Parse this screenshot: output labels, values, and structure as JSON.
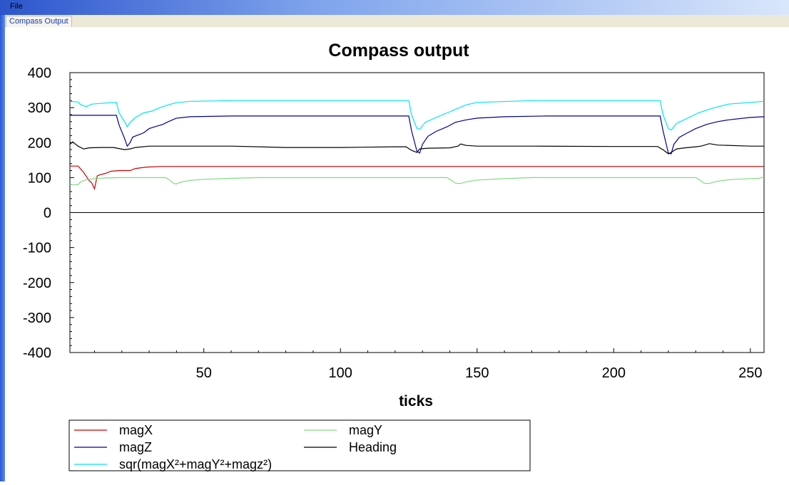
{
  "menubar": {
    "file_label": "File"
  },
  "tab": {
    "label": "Compass Output"
  },
  "chart_data": {
    "type": "line",
    "title": "Compass output",
    "xlabel": "ticks",
    "ylabel": "",
    "xlim": [
      1,
      255
    ],
    "ylim": [
      -400,
      400
    ],
    "xticks": [
      50,
      100,
      150,
      200,
      250
    ],
    "yticks": [
      -400,
      -300,
      -200,
      -100,
      0,
      100,
      200,
      300,
      400
    ],
    "grid": false,
    "legend_position": "bottom-left",
    "series": [
      {
        "name": "magX",
        "color": "#cc0000",
        "points": [
          [
            1,
            133
          ],
          [
            4,
            133
          ],
          [
            6,
            115
          ],
          [
            8,
            92
          ],
          [
            9,
            85
          ],
          [
            10,
            68
          ],
          [
            11,
            105
          ],
          [
            12,
            108
          ],
          [
            14,
            112
          ],
          [
            16,
            118
          ],
          [
            19,
            120
          ],
          [
            23,
            120
          ],
          [
            25,
            126
          ],
          [
            29,
            130
          ],
          [
            35,
            132
          ],
          [
            70,
            132
          ],
          [
            150,
            132
          ],
          [
            200,
            132
          ],
          [
            255,
            132
          ]
        ]
      },
      {
        "name": "magY",
        "color": "#7fd97f",
        "points": [
          [
            1,
            80
          ],
          [
            4,
            80
          ],
          [
            5,
            88
          ],
          [
            7,
            94
          ],
          [
            10,
            97
          ],
          [
            14,
            99
          ],
          [
            20,
            100
          ],
          [
            36,
            100
          ],
          [
            38,
            90
          ],
          [
            39,
            83
          ],
          [
            40,
            82
          ],
          [
            42,
            88
          ],
          [
            45,
            92
          ],
          [
            50,
            95
          ],
          [
            60,
            98
          ],
          [
            70,
            100
          ],
          [
            139,
            100
          ],
          [
            141,
            90
          ],
          [
            142,
            84
          ],
          [
            144,
            83
          ],
          [
            146,
            88
          ],
          [
            150,
            93
          ],
          [
            160,
            97
          ],
          [
            170,
            100
          ],
          [
            230,
            100
          ],
          [
            232,
            90
          ],
          [
            233,
            84
          ],
          [
            235,
            83
          ],
          [
            237,
            88
          ],
          [
            242,
            94
          ],
          [
            250,
            97
          ],
          [
            253,
            98
          ],
          [
            255,
            102
          ]
        ]
      },
      {
        "name": "magZ",
        "color": "#000099",
        "points": [
          [
            1,
            278
          ],
          [
            18,
            278
          ],
          [
            19,
            250
          ],
          [
            21,
            212
          ],
          [
            22,
            190
          ],
          [
            23,
            200
          ],
          [
            24,
            216
          ],
          [
            26,
            222
          ],
          [
            28,
            228
          ],
          [
            30,
            240
          ],
          [
            32,
            245
          ],
          [
            35,
            252
          ],
          [
            37,
            260
          ],
          [
            40,
            270
          ],
          [
            45,
            274
          ],
          [
            60,
            276
          ],
          [
            125,
            276
          ],
          [
            126,
            235
          ],
          [
            128,
            175
          ],
          [
            129,
            170
          ],
          [
            130,
            195
          ],
          [
            132,
            218
          ],
          [
            135,
            232
          ],
          [
            139,
            245
          ],
          [
            142,
            258
          ],
          [
            146,
            265
          ],
          [
            150,
            270
          ],
          [
            160,
            274
          ],
          [
            175,
            276
          ],
          [
            217,
            276
          ],
          [
            218,
            235
          ],
          [
            220,
            170
          ],
          [
            221,
            168
          ],
          [
            222,
            195
          ],
          [
            224,
            215
          ],
          [
            227,
            228
          ],
          [
            230,
            240
          ],
          [
            234,
            252
          ],
          [
            238,
            260
          ],
          [
            242,
            265
          ],
          [
            250,
            272
          ],
          [
            255,
            274
          ]
        ]
      },
      {
        "name": "Heading",
        "color": "#000000",
        "points": [
          [
            1,
            195
          ],
          [
            2,
            202
          ],
          [
            4,
            190
          ],
          [
            6,
            182
          ],
          [
            8,
            185
          ],
          [
            12,
            186
          ],
          [
            17,
            186
          ],
          [
            19,
            183
          ],
          [
            21,
            180
          ],
          [
            23,
            182
          ],
          [
            25,
            186
          ],
          [
            30,
            190
          ],
          [
            40,
            190
          ],
          [
            60,
            190
          ],
          [
            80,
            186
          ],
          [
            100,
            186
          ],
          [
            120,
            188
          ],
          [
            124,
            188
          ],
          [
            126,
            178
          ],
          [
            128,
            172
          ],
          [
            129,
            182
          ],
          [
            132,
            184
          ],
          [
            140,
            185
          ],
          [
            143,
            190
          ],
          [
            144,
            196
          ],
          [
            146,
            192
          ],
          [
            150,
            190
          ],
          [
            170,
            190
          ],
          [
            200,
            189
          ],
          [
            216,
            189
          ],
          [
            218,
            180
          ],
          [
            220,
            168
          ],
          [
            221,
            172
          ],
          [
            223,
            182
          ],
          [
            226,
            185
          ],
          [
            230,
            188
          ],
          [
            232,
            190
          ],
          [
            235,
            197
          ],
          [
            238,
            193
          ],
          [
            250,
            190
          ],
          [
            255,
            190
          ]
        ]
      },
      {
        "name": "sqr(magX²+magY²+magz²)",
        "color": "#00e5ee",
        "points": [
          [
            1,
            318
          ],
          [
            4,
            316
          ],
          [
            5,
            308
          ],
          [
            7,
            303
          ],
          [
            9,
            310
          ],
          [
            14,
            313
          ],
          [
            18,
            315
          ],
          [
            19,
            285
          ],
          [
            21,
            260
          ],
          [
            22,
            245
          ],
          [
            23,
            258
          ],
          [
            25,
            272
          ],
          [
            28,
            285
          ],
          [
            31,
            290
          ],
          [
            34,
            300
          ],
          [
            37,
            308
          ],
          [
            40,
            314
          ],
          [
            45,
            318
          ],
          [
            60,
            320
          ],
          [
            125,
            320
          ],
          [
            126,
            280
          ],
          [
            128,
            240
          ],
          [
            129,
            238
          ],
          [
            131,
            258
          ],
          [
            135,
            272
          ],
          [
            140,
            288
          ],
          [
            143,
            298
          ],
          [
            146,
            308
          ],
          [
            150,
            315
          ],
          [
            170,
            320
          ],
          [
            217,
            320
          ],
          [
            218,
            280
          ],
          [
            220,
            240
          ],
          [
            221,
            236
          ],
          [
            223,
            255
          ],
          [
            227,
            270
          ],
          [
            231,
            285
          ],
          [
            236,
            298
          ],
          [
            242,
            310
          ],
          [
            250,
            315
          ],
          [
            255,
            318
          ]
        ]
      }
    ]
  }
}
